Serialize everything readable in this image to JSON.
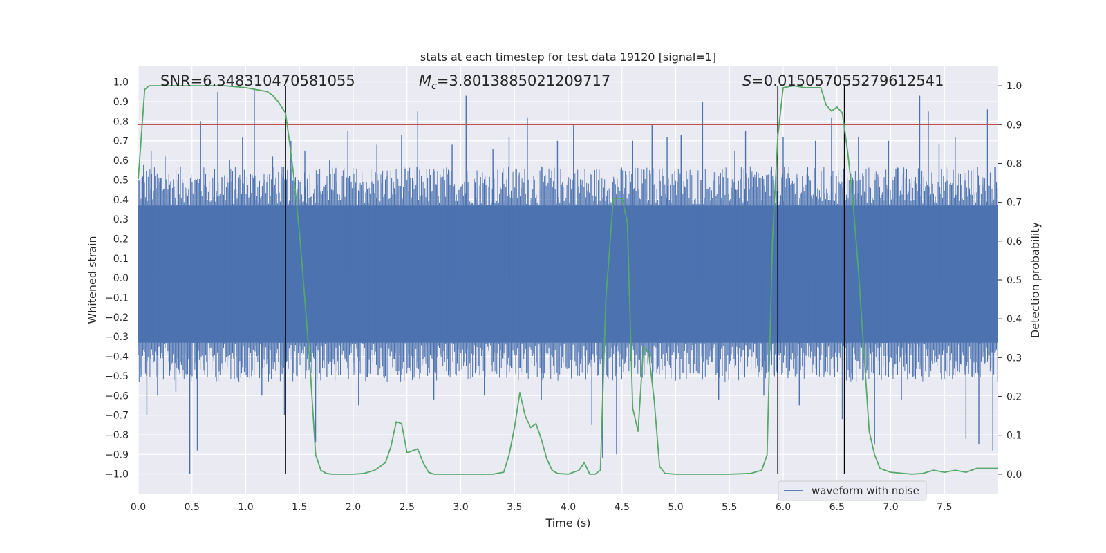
{
  "chart_data": {
    "type": "line",
    "title": "stats at each timestep for test data 19120 [signal=1]",
    "xlabel": "Time (s)",
    "ylabel_left": "Whitened strain",
    "ylabel_right": "Detection probability",
    "xlim": [
      0.0,
      8.0
    ],
    "ylim_left": [
      -1.1,
      1.08
    ],
    "ylim_right": [
      -0.05,
      1.05
    ],
    "xticks": [
      "0.0",
      "0.5",
      "1.0",
      "1.5",
      "2.0",
      "2.5",
      "3.0",
      "3.5",
      "4.0",
      "4.5",
      "5.0",
      "5.5",
      "6.0",
      "6.5",
      "7.0",
      "7.5"
    ],
    "yticks_left": [
      "−1.0",
      "−0.9",
      "−0.8",
      "−0.7",
      "−0.6",
      "−0.5",
      "−0.4",
      "−0.3",
      "−0.2",
      "−0.1",
      "0.0",
      "0.1",
      "0.2",
      "0.3",
      "0.4",
      "0.5",
      "0.6",
      "0.7",
      "0.8",
      "0.9",
      "1.0"
    ],
    "yticks_right": [
      "0.0",
      "0.1",
      "0.2",
      "0.3",
      "0.4",
      "0.5",
      "0.6",
      "0.7",
      "0.8",
      "0.9",
      "1.0"
    ],
    "annotations": {
      "snr": "SNR=6.348310470581055",
      "mc_symbol": "M",
      "mc_sub": "c",
      "mc_value": "=3.8013885021209717",
      "s_symbol": "S",
      "s_value": "=0.015057055279612541"
    },
    "threshold": {
      "value": 0.9,
      "axis": "right",
      "color": "#c44e52"
    },
    "vertical_lines": [
      1.37,
      5.95,
      6.57
    ],
    "legend": {
      "label": "waveform with noise",
      "position": "lower-right"
    },
    "series": [
      {
        "name": "waveform with noise",
        "color": "#4c72b0",
        "axis": "left",
        "style": "dense-noise",
        "band_low": -0.33,
        "band_high": 0.37,
        "spikes": [
          {
            "x": 0.05,
            "y": 0.58
          },
          {
            "x": 0.08,
            "y": -0.7
          },
          {
            "x": 0.12,
            "y": 0.65
          },
          {
            "x": 0.18,
            "y": -0.6
          },
          {
            "x": 0.25,
            "y": 0.62
          },
          {
            "x": 0.35,
            "y": -0.58
          },
          {
            "x": 0.48,
            "y": -1.0
          },
          {
            "x": 0.55,
            "y": -0.88
          },
          {
            "x": 0.58,
            "y": 0.8
          },
          {
            "x": 0.74,
            "y": 0.95
          },
          {
            "x": 0.85,
            "y": 0.6
          },
          {
            "x": 0.97,
            "y": 0.72
          },
          {
            "x": 1.08,
            "y": 0.97
          },
          {
            "x": 1.15,
            "y": -0.6
          },
          {
            "x": 1.25,
            "y": 0.62
          },
          {
            "x": 1.36,
            "y": -0.7
          },
          {
            "x": 1.42,
            "y": 0.7
          },
          {
            "x": 1.55,
            "y": 0.65
          },
          {
            "x": 1.65,
            "y": -0.84
          },
          {
            "x": 1.78,
            "y": 0.6
          },
          {
            "x": 1.95,
            "y": 0.75
          },
          {
            "x": 2.05,
            "y": -0.65
          },
          {
            "x": 2.22,
            "y": 0.68
          },
          {
            "x": 2.45,
            "y": 0.73
          },
          {
            "x": 2.6,
            "y": 0.85
          },
          {
            "x": 2.75,
            "y": -0.62
          },
          {
            "x": 2.92,
            "y": 0.68
          },
          {
            "x": 3.05,
            "y": 0.93
          },
          {
            "x": 3.22,
            "y": -0.6
          },
          {
            "x": 3.3,
            "y": 0.66
          },
          {
            "x": 3.45,
            "y": 0.72
          },
          {
            "x": 3.62,
            "y": 0.82
          },
          {
            "x": 3.75,
            "y": -0.62
          },
          {
            "x": 3.9,
            "y": 0.7
          },
          {
            "x": 4.05,
            "y": 0.78
          },
          {
            "x": 4.22,
            "y": -0.75
          },
          {
            "x": 4.32,
            "y": -0.92
          },
          {
            "x": 4.45,
            "y": -0.9
          },
          {
            "x": 4.6,
            "y": 0.7
          },
          {
            "x": 4.78,
            "y": 0.78
          },
          {
            "x": 4.92,
            "y": 0.72
          },
          {
            "x": 5.05,
            "y": 0.73
          },
          {
            "x": 5.25,
            "y": 0.9
          },
          {
            "x": 5.4,
            "y": -0.62
          },
          {
            "x": 5.55,
            "y": 0.65
          },
          {
            "x": 5.65,
            "y": 0.75
          },
          {
            "x": 5.82,
            "y": -0.6
          },
          {
            "x": 6.0,
            "y": 0.72
          },
          {
            "x": 6.15,
            "y": -0.65
          },
          {
            "x": 6.3,
            "y": 0.7
          },
          {
            "x": 6.45,
            "y": 0.82
          },
          {
            "x": 6.55,
            "y": -0.72
          },
          {
            "x": 6.7,
            "y": 0.72
          },
          {
            "x": 6.85,
            "y": -0.85
          },
          {
            "x": 6.98,
            "y": 0.7
          },
          {
            "x": 7.1,
            "y": -0.62
          },
          {
            "x": 7.27,
            "y": 0.93
          },
          {
            "x": 7.35,
            "y": 0.85
          },
          {
            "x": 7.45,
            "y": 0.68
          },
          {
            "x": 7.6,
            "y": 0.72
          },
          {
            "x": 7.7,
            "y": -0.82
          },
          {
            "x": 7.82,
            "y": -0.85
          },
          {
            "x": 7.9,
            "y": 0.86
          },
          {
            "x": 7.95,
            "y": -0.88
          }
        ]
      },
      {
        "name": "detection probability",
        "color": "#55a868",
        "axis": "right",
        "x": [
          0.0,
          0.06,
          0.1,
          0.2,
          0.4,
          0.6,
          0.8,
          1.0,
          1.1,
          1.2,
          1.25,
          1.3,
          1.37,
          1.4,
          1.45,
          1.5,
          1.55,
          1.6,
          1.65,
          1.7,
          1.75,
          1.8,
          2.0,
          2.1,
          2.2,
          2.3,
          2.35,
          2.4,
          2.45,
          2.5,
          2.6,
          2.65,
          2.7,
          2.75,
          3.0,
          3.3,
          3.4,
          3.45,
          3.5,
          3.55,
          3.6,
          3.65,
          3.7,
          3.75,
          3.8,
          3.85,
          3.9,
          4.0,
          4.1,
          4.15,
          4.2,
          4.25,
          4.3,
          4.35,
          4.42,
          4.45,
          4.5,
          4.55,
          4.6,
          4.65,
          4.7,
          4.75,
          4.8,
          4.85,
          4.9,
          5.0,
          5.2,
          5.5,
          5.7,
          5.8,
          5.85,
          5.9,
          5.95,
          6.0,
          6.1,
          6.2,
          6.35,
          6.4,
          6.45,
          6.5,
          6.55,
          6.6,
          6.65,
          6.7,
          6.75,
          6.8,
          6.85,
          6.9,
          7.0,
          7.2,
          7.3,
          7.4,
          7.5,
          7.6,
          7.7,
          7.8,
          7.9,
          8.0
        ],
        "y": [
          0.76,
          0.99,
          1.0,
          1.0,
          1.0,
          1.0,
          1.0,
          0.995,
          0.99,
          0.985,
          0.975,
          0.96,
          0.93,
          0.87,
          0.76,
          0.62,
          0.45,
          0.27,
          0.05,
          0.01,
          0.002,
          0.0,
          0.0,
          0.002,
          0.01,
          0.03,
          0.07,
          0.135,
          0.13,
          0.055,
          0.065,
          0.03,
          0.005,
          0.0,
          0.0,
          0.0,
          0.005,
          0.05,
          0.12,
          0.21,
          0.15,
          0.12,
          0.13,
          0.09,
          0.04,
          0.01,
          0.002,
          0.0,
          0.01,
          0.03,
          0.0,
          0.0,
          0.01,
          0.45,
          0.71,
          0.71,
          0.71,
          0.65,
          0.17,
          0.11,
          0.33,
          0.31,
          0.19,
          0.02,
          0.002,
          0.0,
          0.0,
          0.0,
          0.002,
          0.01,
          0.05,
          0.6,
          0.87,
          0.995,
          1.0,
          0.995,
          0.995,
          0.95,
          0.935,
          0.945,
          0.93,
          0.83,
          0.7,
          0.52,
          0.32,
          0.11,
          0.05,
          0.015,
          0.005,
          0.0,
          0.002,
          0.01,
          0.005,
          0.01,
          0.005,
          0.015,
          0.015,
          0.015
        ]
      }
    ]
  }
}
